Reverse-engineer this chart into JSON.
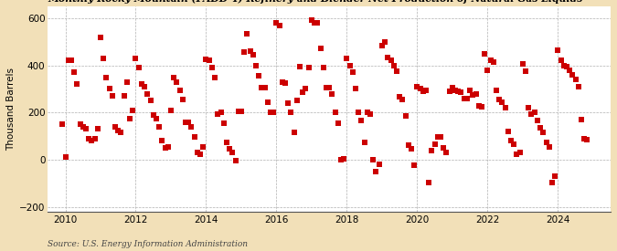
{
  "ylabel": "Thousand Barrels",
  "source": "Source: U.S. Energy Information Administration",
  "background_color": "#f2e0b8",
  "plot_bg_color": "#ffffff",
  "marker_color": "#cc0000",
  "marker_size": 18,
  "xlim": [
    2009.5,
    2025.5
  ],
  "ylim": [
    -220,
    650
  ],
  "yticks": [
    -200,
    0,
    200,
    400,
    600
  ],
  "xticks": [
    2010,
    2012,
    2014,
    2016,
    2018,
    2020,
    2022,
    2024
  ],
  "dates": [
    2009.917,
    2010.0,
    2010.083,
    2010.167,
    2010.25,
    2010.333,
    2010.417,
    2010.5,
    2010.583,
    2010.667,
    2010.75,
    2010.833,
    2010.917,
    2011.0,
    2011.083,
    2011.167,
    2011.25,
    2011.333,
    2011.417,
    2011.5,
    2011.583,
    2011.667,
    2011.75,
    2011.833,
    2011.917,
    2012.0,
    2012.083,
    2012.167,
    2012.25,
    2012.333,
    2012.417,
    2012.5,
    2012.583,
    2012.667,
    2012.75,
    2012.833,
    2012.917,
    2013.0,
    2013.083,
    2013.167,
    2013.25,
    2013.333,
    2013.417,
    2013.5,
    2013.583,
    2013.667,
    2013.75,
    2013.833,
    2013.917,
    2014.0,
    2014.083,
    2014.167,
    2014.25,
    2014.333,
    2014.417,
    2014.5,
    2014.583,
    2014.667,
    2014.75,
    2014.833,
    2014.917,
    2015.0,
    2015.083,
    2015.167,
    2015.25,
    2015.333,
    2015.417,
    2015.5,
    2015.583,
    2015.667,
    2015.75,
    2015.833,
    2015.917,
    2016.0,
    2016.083,
    2016.167,
    2016.25,
    2016.333,
    2016.417,
    2016.5,
    2016.583,
    2016.667,
    2016.75,
    2016.833,
    2016.917,
    2017.0,
    2017.083,
    2017.167,
    2017.25,
    2017.333,
    2017.417,
    2017.5,
    2017.583,
    2017.667,
    2017.75,
    2017.833,
    2017.917,
    2018.0,
    2018.083,
    2018.167,
    2018.25,
    2018.333,
    2018.417,
    2018.5,
    2018.583,
    2018.667,
    2018.75,
    2018.833,
    2018.917,
    2019.0,
    2019.083,
    2019.167,
    2019.25,
    2019.333,
    2019.417,
    2019.5,
    2019.583,
    2019.667,
    2019.75,
    2019.833,
    2019.917,
    2020.0,
    2020.083,
    2020.167,
    2020.25,
    2020.333,
    2020.417,
    2020.5,
    2020.583,
    2020.667,
    2020.75,
    2020.833,
    2020.917,
    2021.0,
    2021.083,
    2021.167,
    2021.25,
    2021.333,
    2021.417,
    2021.5,
    2021.583,
    2021.667,
    2021.75,
    2021.833,
    2021.917,
    2022.0,
    2022.083,
    2022.167,
    2022.25,
    2022.333,
    2022.417,
    2022.5,
    2022.583,
    2022.667,
    2022.75,
    2022.833,
    2022.917,
    2023.0,
    2023.083,
    2023.167,
    2023.25,
    2023.333,
    2023.417,
    2023.5,
    2023.583,
    2023.667,
    2023.75,
    2023.833,
    2023.917,
    2024.0,
    2024.083,
    2024.167,
    2024.25,
    2024.333,
    2024.417,
    2024.5,
    2024.583,
    2024.667,
    2024.75,
    2024.833
  ],
  "values": [
    150,
    10,
    420,
    420,
    370,
    320,
    150,
    140,
    130,
    90,
    80,
    90,
    130,
    520,
    430,
    350,
    300,
    270,
    140,
    125,
    115,
    270,
    330,
    175,
    210,
    430,
    390,
    320,
    310,
    280,
    250,
    190,
    175,
    140,
    80,
    50,
    55,
    210,
    350,
    330,
    295,
    255,
    160,
    160,
    140,
    95,
    30,
    25,
    55,
    425,
    420,
    390,
    350,
    195,
    200,
    155,
    75,
    45,
    30,
    -5,
    205,
    205,
    455,
    535,
    460,
    445,
    400,
    355,
    305,
    305,
    245,
    200,
    200,
    580,
    570,
    330,
    325,
    240,
    200,
    115,
    250,
    395,
    285,
    300,
    390,
    590,
    580,
    580,
    470,
    390,
    305,
    305,
    280,
    200,
    155,
    0,
    5,
    430,
    400,
    370,
    300,
    200,
    165,
    75,
    200,
    195,
    0,
    -50,
    -20,
    485,
    500,
    435,
    420,
    400,
    375,
    265,
    255,
    185,
    60,
    45,
    -25,
    310,
    300,
    290,
    295,
    -95,
    40,
    65,
    95,
    95,
    50,
    30,
    290,
    305,
    295,
    290,
    285,
    260,
    260,
    295,
    275,
    280,
    230,
    225,
    450,
    380,
    420,
    415,
    295,
    255,
    245,
    220,
    120,
    80,
    65,
    25,
    30,
    405,
    375,
    220,
    195,
    200,
    165,
    135,
    115,
    75,
    55,
    -95,
    -70,
    465,
    420,
    400,
    395,
    380,
    360,
    340,
    310,
    170,
    90,
    85
  ]
}
